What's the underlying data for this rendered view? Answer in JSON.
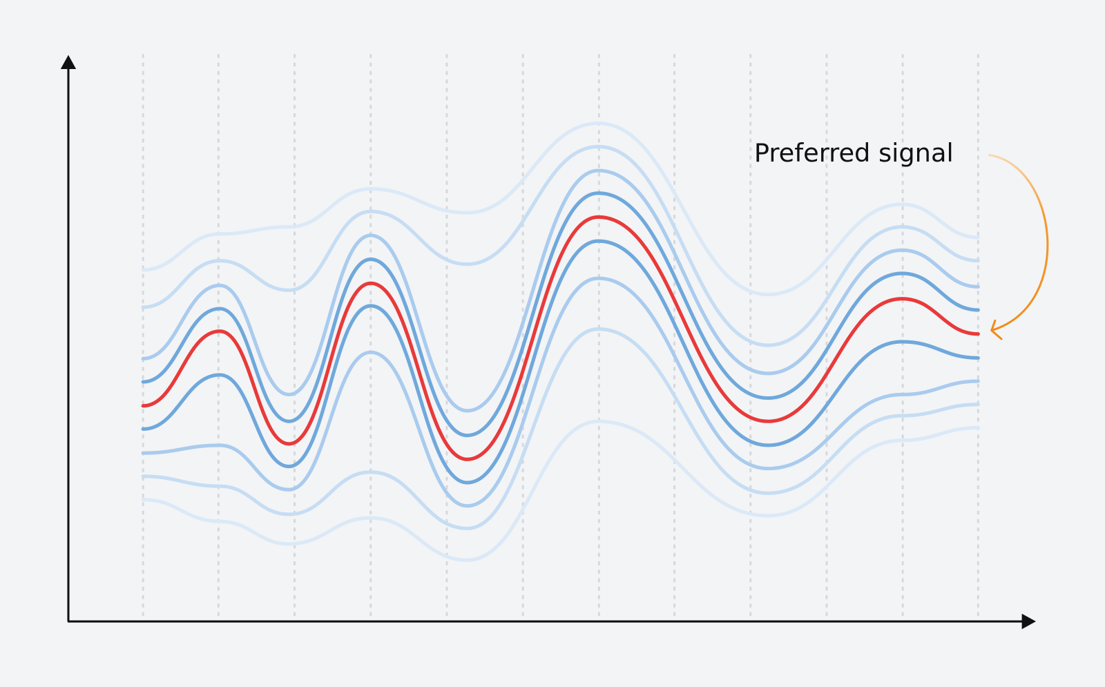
{
  "annotation": "Preferred signal"
}
